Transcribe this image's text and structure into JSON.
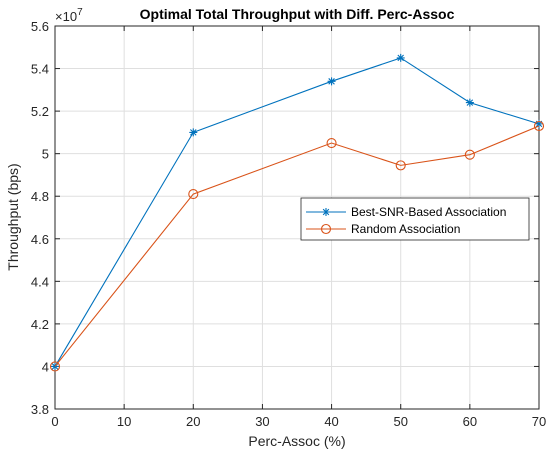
{
  "chart_data": {
    "type": "line",
    "title": "Optimal Total Throughput with Diff. Perc-Assoc",
    "xlabel": "Perc-Assoc (%)",
    "ylabel": "Throughput (bps)",
    "y_exponent_label": "×10",
    "y_exponent_power": "7",
    "y_scale": 10000000,
    "xlim": [
      0,
      70
    ],
    "ylim": [
      3.8,
      5.6
    ],
    "xticks": [
      0,
      10,
      20,
      30,
      40,
      50,
      60,
      70
    ],
    "yticks": [
      3.8,
      4,
      4.2,
      4.4,
      4.6,
      4.8,
      5,
      5.2,
      5.4,
      5.6
    ],
    "ytick_labels": [
      "3.8",
      "4",
      "4.2",
      "4.4",
      "4.6",
      "4.8",
      "5",
      "5.2",
      "5.4",
      "5.6"
    ],
    "grid": true,
    "legend_position": "right-middle",
    "x": [
      0,
      20,
      40,
      50,
      60,
      70
    ],
    "series": [
      {
        "name": "Best-SNR-Based Association",
        "color": "#0072bd",
        "marker": "asterisk",
        "values": [
          4.0,
          5.1,
          5.34,
          5.45,
          5.24,
          5.14
        ]
      },
      {
        "name": "Random Association",
        "color": "#d95319",
        "marker": "circle",
        "values": [
          4.0,
          4.81,
          5.05,
          4.945,
          4.995,
          5.13
        ]
      }
    ]
  }
}
